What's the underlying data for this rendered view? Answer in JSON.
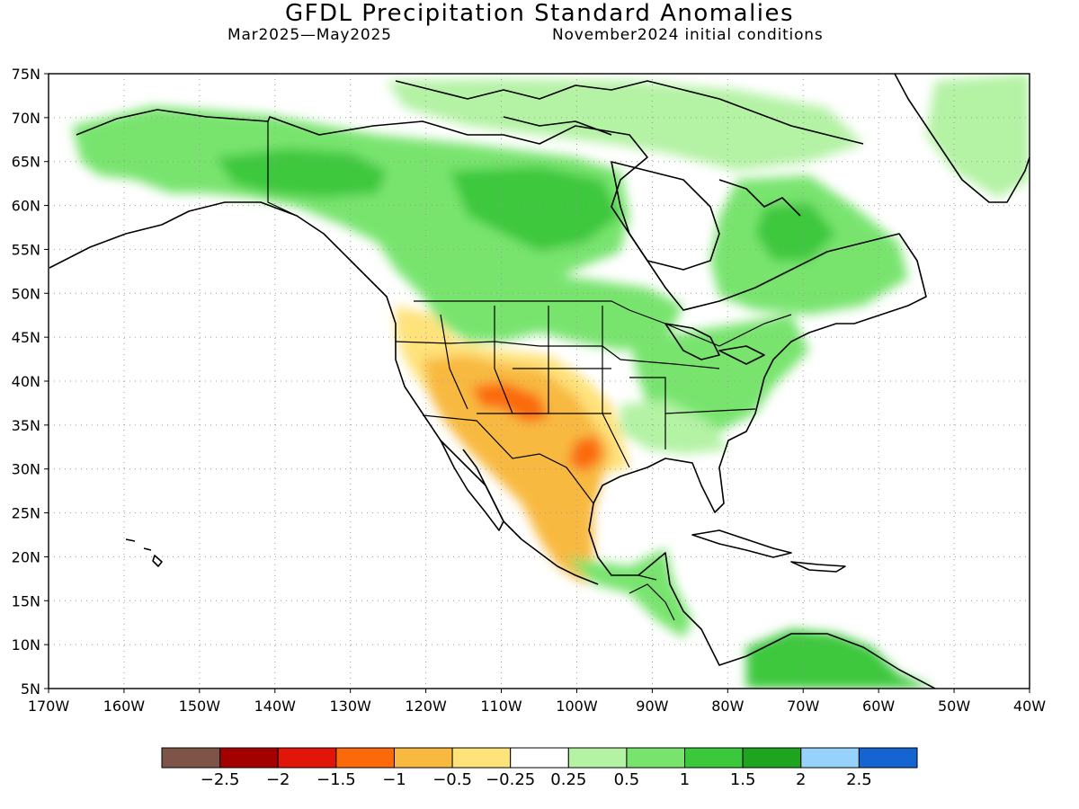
{
  "header": {
    "title": "GFDL Precipitation Standard Anomalies",
    "period": "Mar2025—May2025",
    "initial_conditions": "November2024 initial conditions"
  },
  "axes": {
    "lon_ticks": [
      "170W",
      "160W",
      "150W",
      "140W",
      "130W",
      "120W",
      "110W",
      "100W",
      "90W",
      "80W",
      "70W",
      "60W",
      "50W",
      "40W"
    ],
    "lat_ticks": [
      "75N",
      "70N",
      "65N",
      "60N",
      "55N",
      "50N",
      "45N",
      "40N",
      "35N",
      "30N",
      "25N",
      "20N",
      "15N",
      "10N",
      "5N"
    ],
    "lon_range": [
      -170,
      -40
    ],
    "lat_range": [
      5,
      75
    ],
    "grid": "dotted"
  },
  "colorbar": {
    "labels": [
      "−2.5",
      "−2",
      "−1.5",
      "−1",
      "−0.5",
      "−0.25",
      "0.25",
      "0.5",
      "1",
      "1.5",
      "2",
      "2.5"
    ],
    "colors": [
      "#7f5448",
      "#a50000",
      "#e2150a",
      "#fb6a0a",
      "#f8b940",
      "#fee27a",
      "#ffffff",
      "#b4f2a4",
      "#78e46e",
      "#3cc83c",
      "#1fa41f",
      "#96d2fa",
      "#1464d2"
    ]
  },
  "regions": [
    {
      "name": "alaska-green",
      "color": "#78e46e",
      "lon_center": -150,
      "lat_center": 65
    },
    {
      "name": "canada-north-green",
      "color": "#78e46e",
      "lon_center": -110,
      "lat_center": 63
    },
    {
      "name": "canada-east-green",
      "color": "#78e46e",
      "lon_center": -70,
      "lat_center": 55
    },
    {
      "name": "greenland-green",
      "color": "#b4f2a4",
      "lon_center": -47,
      "lat_center": 68
    },
    {
      "name": "southwest-dry",
      "color": "#f8b940",
      "lon_center": -108,
      "lat_center": 34
    },
    {
      "name": "four-corners-dry-core",
      "color": "#fb6a0a",
      "lon_center": -110,
      "lat_center": 38
    },
    {
      "name": "texas-dry-core",
      "color": "#fb6a0a",
      "lon_center": -98,
      "lat_center": 31
    },
    {
      "name": "mexico-dry",
      "color": "#f8b940",
      "lon_center": -103,
      "lat_center": 24
    },
    {
      "name": "east-us-green",
      "color": "#78e46e",
      "lon_center": -82,
      "lat_center": 38
    },
    {
      "name": "south-america-green",
      "color": "#3cc83c",
      "lon_center": -70,
      "lat_center": 7
    }
  ]
}
